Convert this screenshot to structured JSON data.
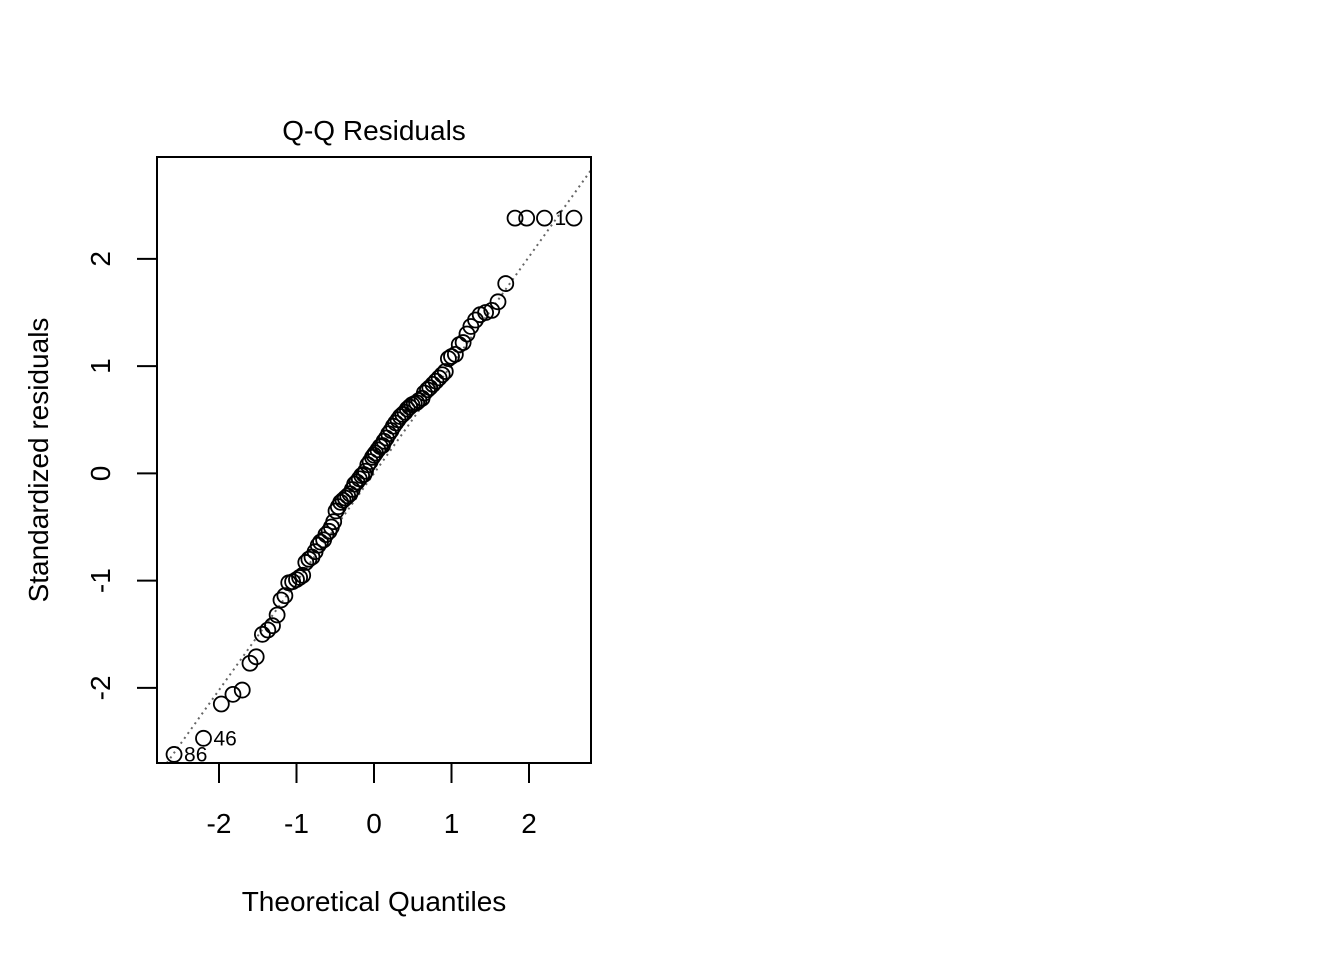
{
  "chart_data": {
    "type": "scatter",
    "title": "Q-Q Residuals",
    "xlabel": "Theoretical Quantiles",
    "ylabel": "Standardized residuals",
    "xlim": [
      -2.8,
      2.8
    ],
    "ylim": [
      -2.7,
      2.95
    ],
    "x_ticks": [
      -2,
      -1,
      0,
      1,
      2
    ],
    "x_tick_labels": [
      "-2",
      "-1",
      "0",
      "1",
      "2"
    ],
    "y_ticks": [
      -2,
      -1,
      0,
      1,
      2
    ],
    "y_tick_labels": [
      "-2",
      "-1",
      "0",
      "1",
      "2"
    ],
    "grid": false,
    "legend": "none",
    "reference_line": {
      "style": "dotted",
      "color": "#666666",
      "intercept": 0.0,
      "slope": 1.01
    },
    "points": {
      "x": [
        -2.58,
        -2.2,
        -1.97,
        -1.82,
        -1.7,
        -1.6,
        -1.52,
        -1.44,
        -1.37,
        -1.31,
        -1.25,
        -1.2,
        -1.15,
        -1.1,
        -1.05,
        -1.0,
        -0.96,
        -0.92,
        -0.88,
        -0.84,
        -0.8,
        -0.76,
        -0.72,
        -0.69,
        -0.65,
        -0.62,
        -0.58,
        -0.55,
        -0.52,
        -0.49,
        -0.46,
        -0.43,
        -0.4,
        -0.37,
        -0.34,
        -0.31,
        -0.28,
        -0.25,
        -0.22,
        -0.19,
        -0.16,
        -0.13,
        -0.11,
        -0.08,
        -0.05,
        -0.02,
        0.0,
        0.02,
        0.05,
        0.08,
        0.11,
        0.13,
        0.16,
        0.19,
        0.22,
        0.25,
        0.28,
        0.31,
        0.34,
        0.37,
        0.4,
        0.43,
        0.46,
        0.49,
        0.52,
        0.55,
        0.58,
        0.62,
        0.65,
        0.69,
        0.72,
        0.76,
        0.8,
        0.84,
        0.88,
        0.92,
        0.96,
        1.0,
        1.05,
        1.1,
        1.15,
        1.2,
        1.25,
        1.31,
        1.37,
        1.44,
        1.52,
        1.6,
        1.7,
        1.82,
        1.97,
        2.2,
        2.58
      ],
      "y": [
        -2.62,
        -2.47,
        -2.15,
        -2.06,
        -2.02,
        -1.77,
        -1.71,
        -1.5,
        -1.46,
        -1.42,
        -1.32,
        -1.18,
        -1.14,
        -1.02,
        -1.01,
        -0.99,
        -0.97,
        -0.95,
        -0.83,
        -0.8,
        -0.78,
        -0.73,
        -0.67,
        -0.64,
        -0.62,
        -0.57,
        -0.54,
        -0.5,
        -0.45,
        -0.35,
        -0.31,
        -0.27,
        -0.25,
        -0.23,
        -0.21,
        -0.19,
        -0.15,
        -0.1,
        -0.08,
        -0.05,
        -0.02,
        -0.01,
        0.02,
        0.08,
        0.11,
        0.15,
        0.17,
        0.19,
        0.22,
        0.25,
        0.26,
        0.3,
        0.33,
        0.37,
        0.4,
        0.44,
        0.47,
        0.5,
        0.53,
        0.55,
        0.57,
        0.6,
        0.62,
        0.64,
        0.65,
        0.66,
        0.68,
        0.7,
        0.75,
        0.78,
        0.8,
        0.83,
        0.86,
        0.89,
        0.92,
        0.95,
        1.07,
        1.09,
        1.11,
        1.2,
        1.22,
        1.3,
        1.37,
        1.43,
        1.48,
        1.5,
        1.52,
        1.6,
        1.77,
        2.38,
        2.38,
        2.38,
        2.38
      ]
    },
    "point_labels": [
      {
        "text": "1",
        "x": 2.2,
        "y": 2.38
      },
      {
        "text": "46",
        "x": -2.2,
        "y": -2.47
      },
      {
        "text": "86",
        "x": -2.58,
        "y": -2.62
      }
    ]
  }
}
